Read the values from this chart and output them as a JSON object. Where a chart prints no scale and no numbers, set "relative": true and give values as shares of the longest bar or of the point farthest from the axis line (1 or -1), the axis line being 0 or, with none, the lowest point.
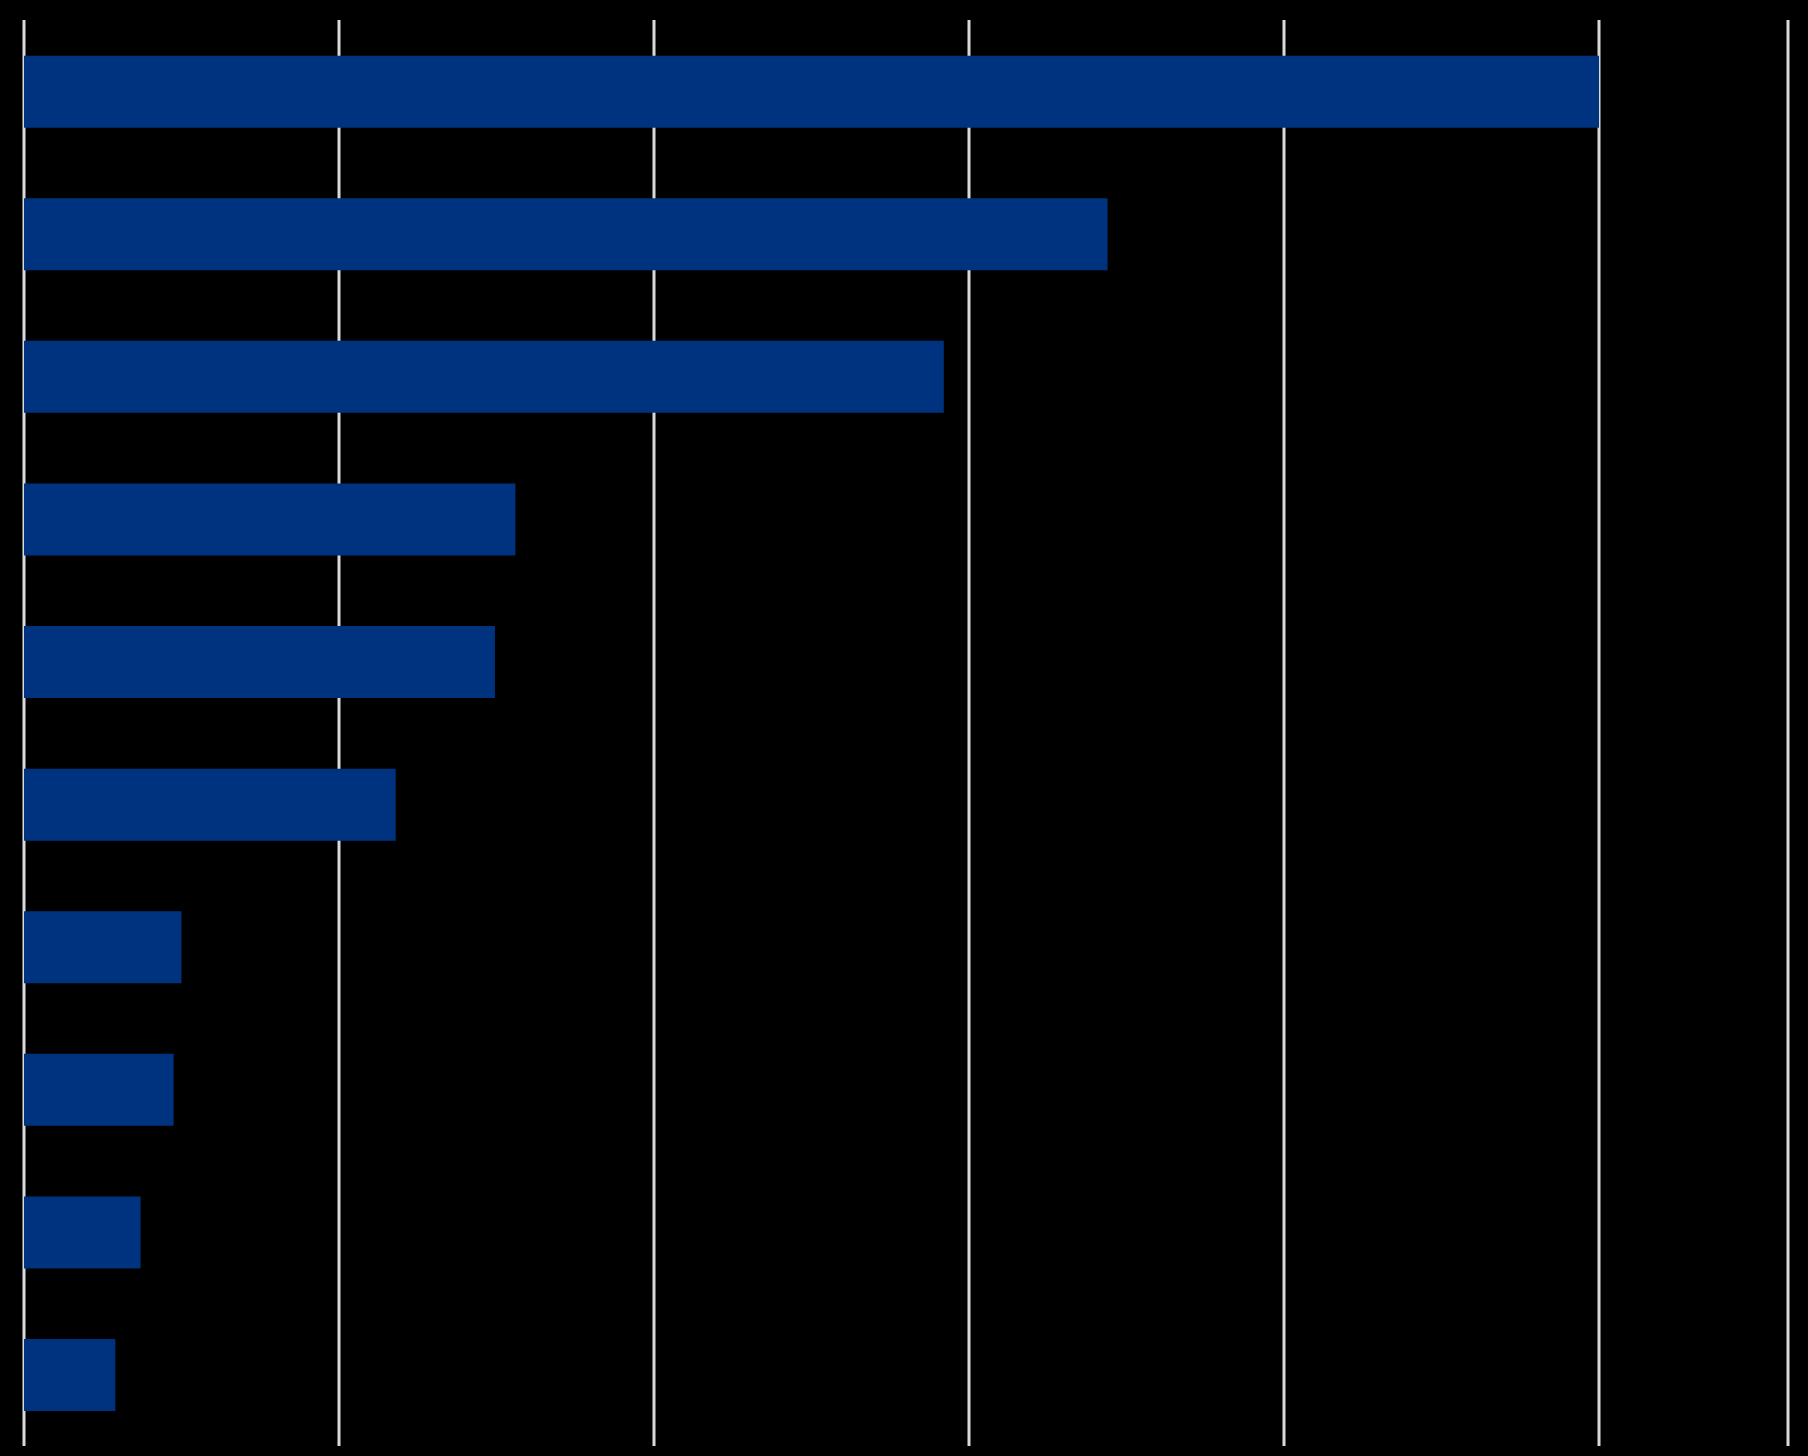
{
  "chart_data": {
    "type": "bar",
    "orientation": "horizontal",
    "relative": true,
    "grid": "x",
    "legend": false,
    "tick_labels": false,
    "categories": [
      null,
      null,
      null,
      null,
      null,
      null,
      null,
      null,
      null,
      null
    ],
    "series": [
      {
        "color": "#00337f",
        "values": [
          1,
          0.688,
          0.584,
          0.312,
          0.299,
          0.236,
          0.1,
          0.095,
          0.074,
          0.058
        ]
      }
    ]
  }
}
